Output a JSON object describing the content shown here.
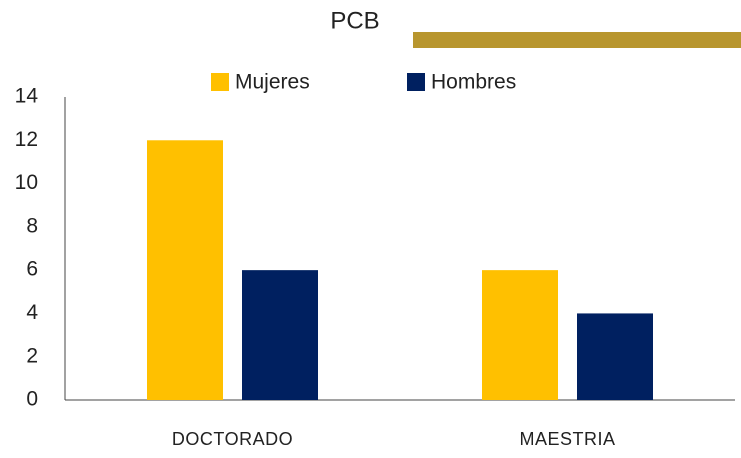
{
  "chart_data": {
    "type": "bar",
    "title": "PCB",
    "categories": [
      "DOCTORADO",
      "MAESTRIA"
    ],
    "series": [
      {
        "name": "Mujeres",
        "color": "#FFC000",
        "values": [
          12,
          6
        ]
      },
      {
        "name": "Hombres",
        "color": "#002060",
        "values": [
          6,
          4
        ]
      }
    ],
    "ylim": [
      0,
      14
    ],
    "yticks": [
      0,
      2,
      4,
      6,
      8,
      10,
      12,
      14
    ],
    "grid": false,
    "legend": "top"
  }
}
